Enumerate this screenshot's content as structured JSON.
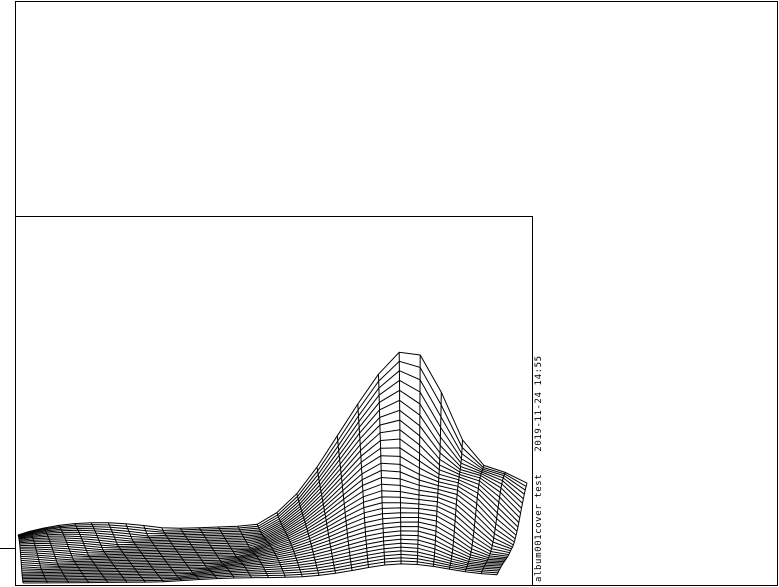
{
  "plot": {
    "title": "album001cover test",
    "timestamp": "2019-11-24 14:55"
  },
  "style": {
    "line_color": "#000000",
    "background": "#ffffff"
  }
}
